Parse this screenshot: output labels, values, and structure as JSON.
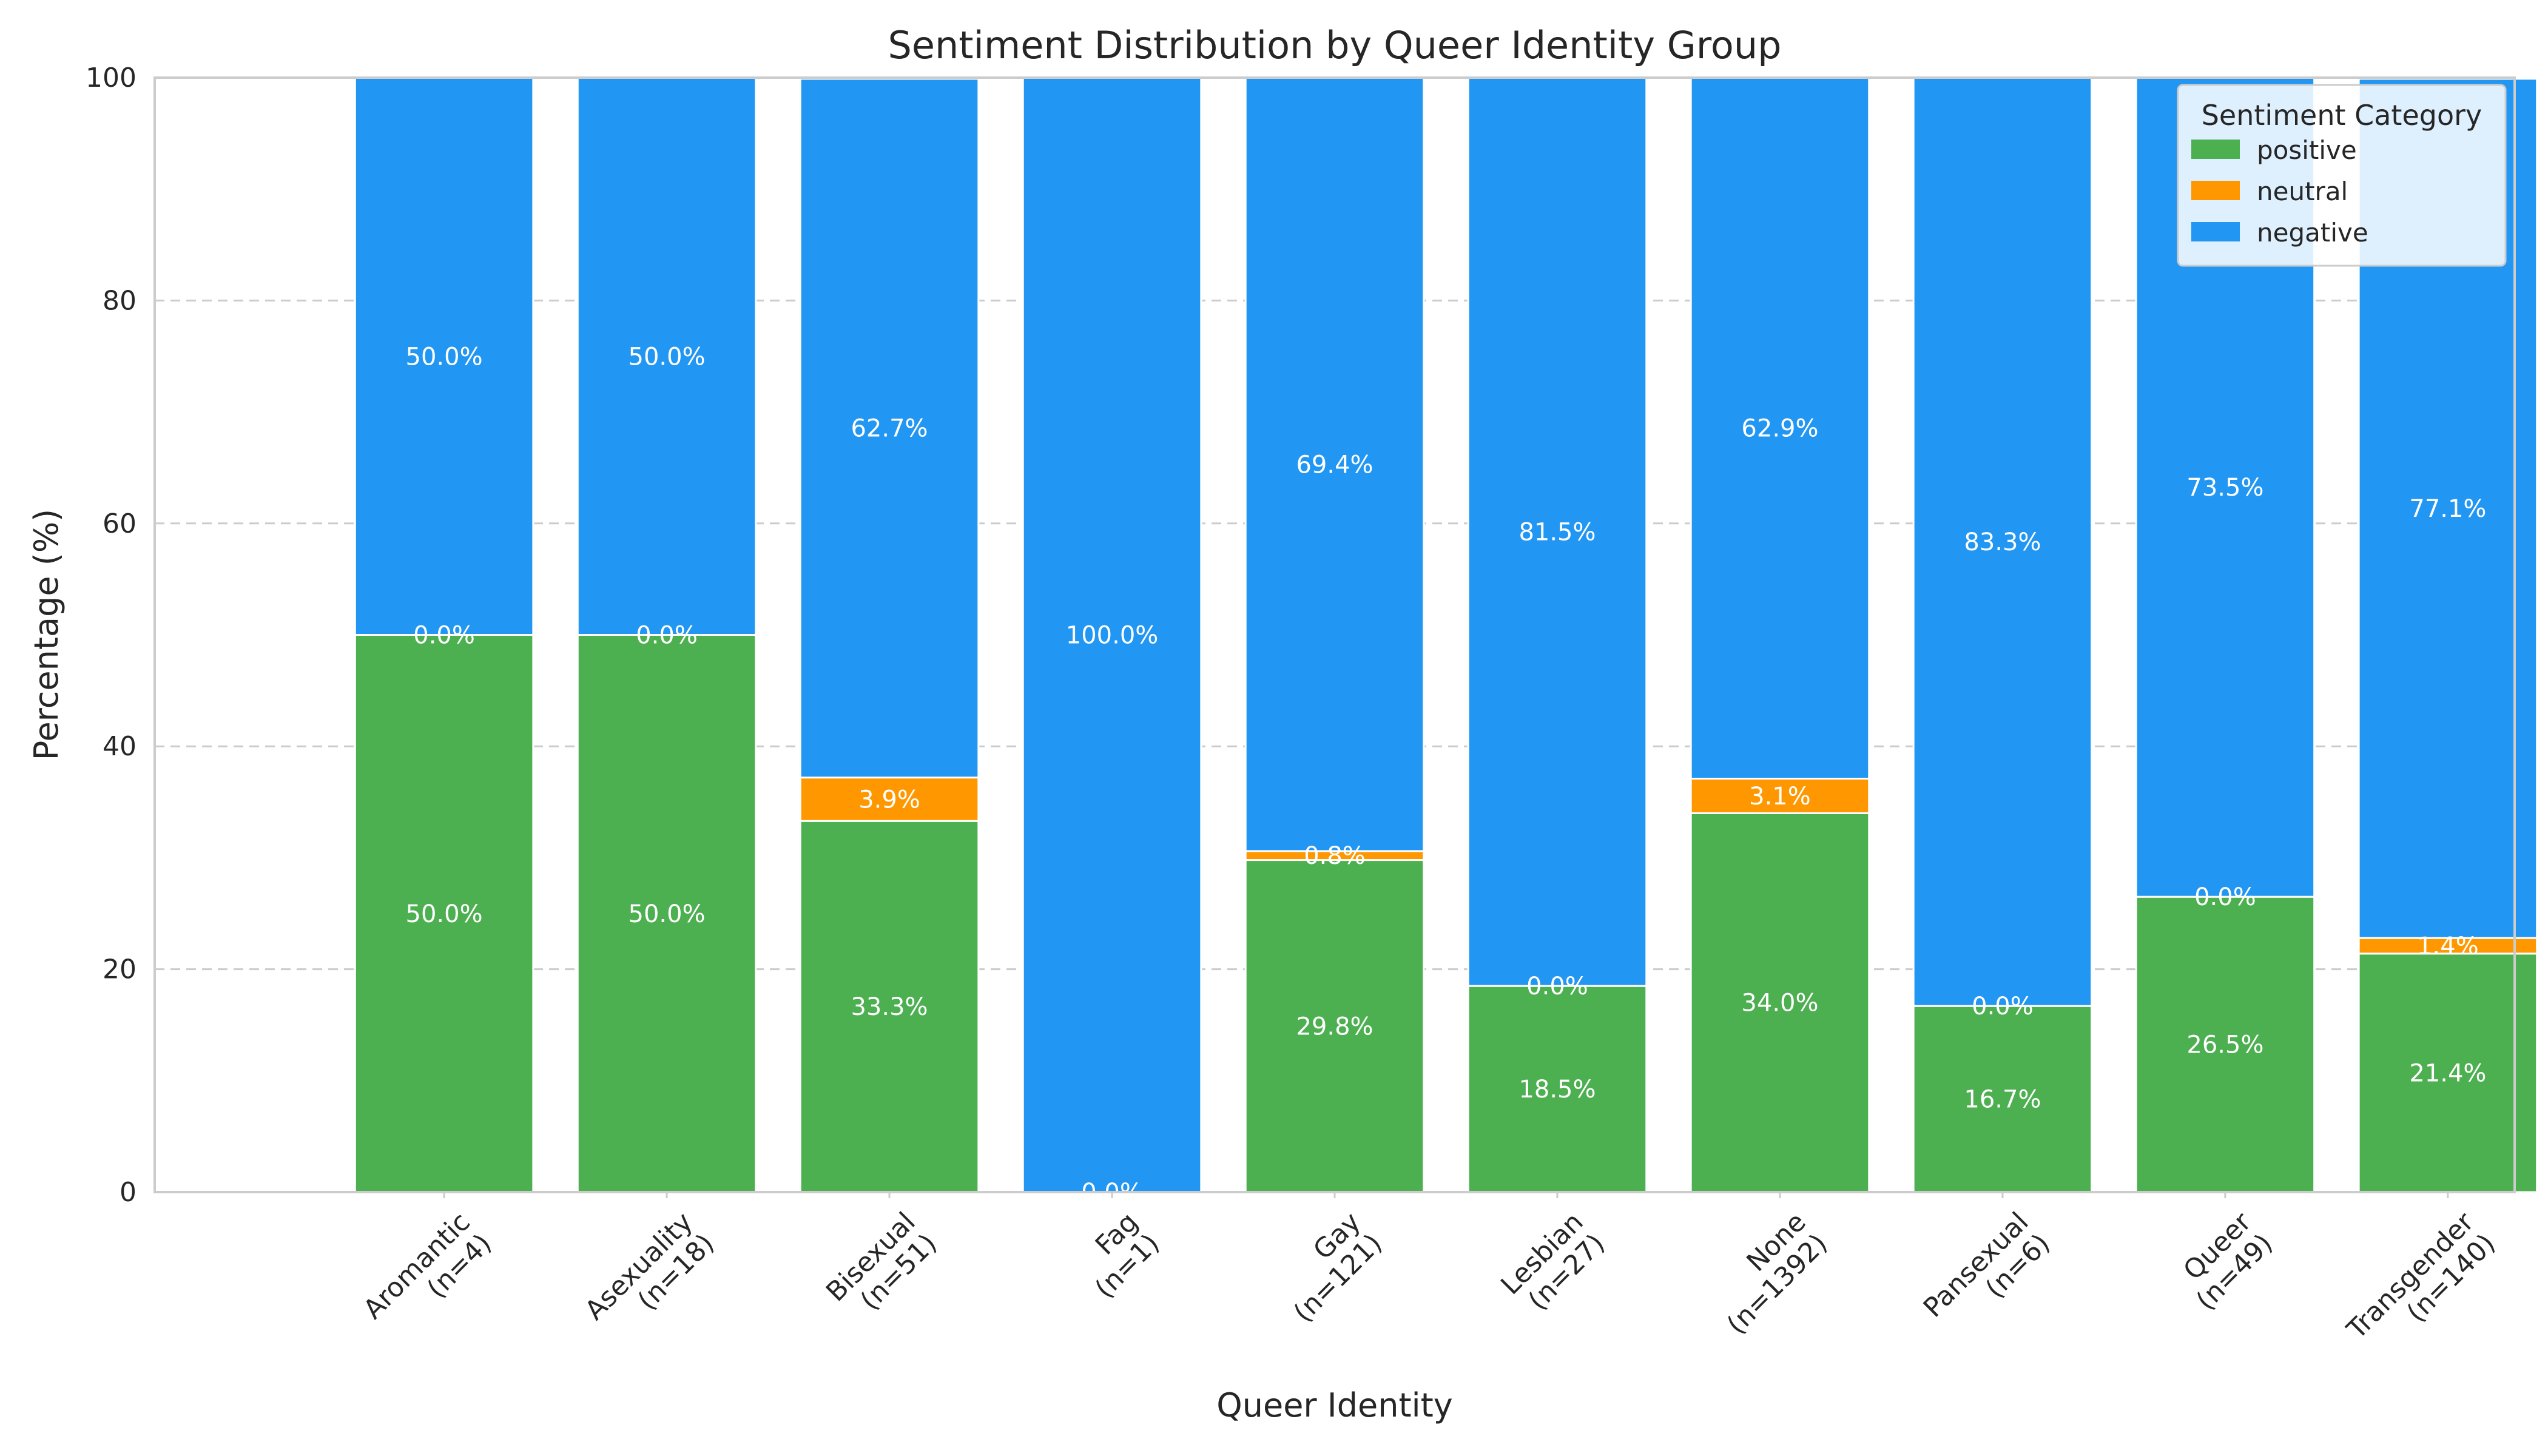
{
  "chart_data": {
    "type": "bar",
    "stacked": true,
    "title": "Sentiment Distribution by Queer Identity Group",
    "xlabel": "Queer Identity",
    "ylabel": "Percentage (%)",
    "ylim": [
      0,
      100
    ],
    "yticks": [
      0,
      20,
      40,
      60,
      80,
      100
    ],
    "grid": true,
    "legend": {
      "title": "Sentiment Category",
      "placement": "top-right"
    },
    "categories": [
      [
        "Aromantic",
        "(n=4)"
      ],
      [
        "Asexuality",
        "(n=18)"
      ],
      [
        "Bisexual",
        "(n=51)"
      ],
      [
        "Fag",
        "(n=1)"
      ],
      [
        "Gay",
        "(n=121)"
      ],
      [
        "Lesbian",
        "(n=27)"
      ],
      [
        "None",
        "(n=1392)"
      ],
      [
        "Pansexual",
        "(n=6)"
      ],
      [
        "Queer",
        "(n=49)"
      ],
      [
        "Transgender",
        "(n=140)"
      ]
    ],
    "series": [
      {
        "name": "positive",
        "color": "#4caf50",
        "values": [
          50.0,
          50.0,
          33.3,
          0.0,
          29.8,
          18.5,
          34.0,
          16.7,
          26.5,
          21.4
        ]
      },
      {
        "name": "neutral",
        "color": "#ff9800",
        "values": [
          0.0,
          0.0,
          3.9,
          0.0,
          0.8,
          0.0,
          3.1,
          0.0,
          0.0,
          1.4
        ]
      },
      {
        "name": "negative",
        "color": "#2196f3",
        "values": [
          50.0,
          50.0,
          62.7,
          100.0,
          69.4,
          81.5,
          62.9,
          83.3,
          73.5,
          77.1
        ]
      }
    ],
    "data_labels": [
      [
        "50.0%",
        "0.0%",
        "50.0%"
      ],
      [
        "50.0%",
        "0.0%",
        "50.0%"
      ],
      [
        "33.3%",
        "3.9%",
        "62.7%"
      ],
      [
        "",
        "0.0%",
        "100.0%"
      ],
      [
        "29.8%",
        "0.8%",
        "69.4%"
      ],
      [
        "18.5%",
        "0.0%",
        "81.5%"
      ],
      [
        "34.0%",
        "3.1%",
        "62.9%"
      ],
      [
        "16.7%",
        "0.0%",
        "83.3%"
      ],
      [
        "26.5%",
        "0.0%",
        "73.5%"
      ],
      [
        "21.4%",
        "1.4%",
        "77.1%"
      ]
    ]
  }
}
